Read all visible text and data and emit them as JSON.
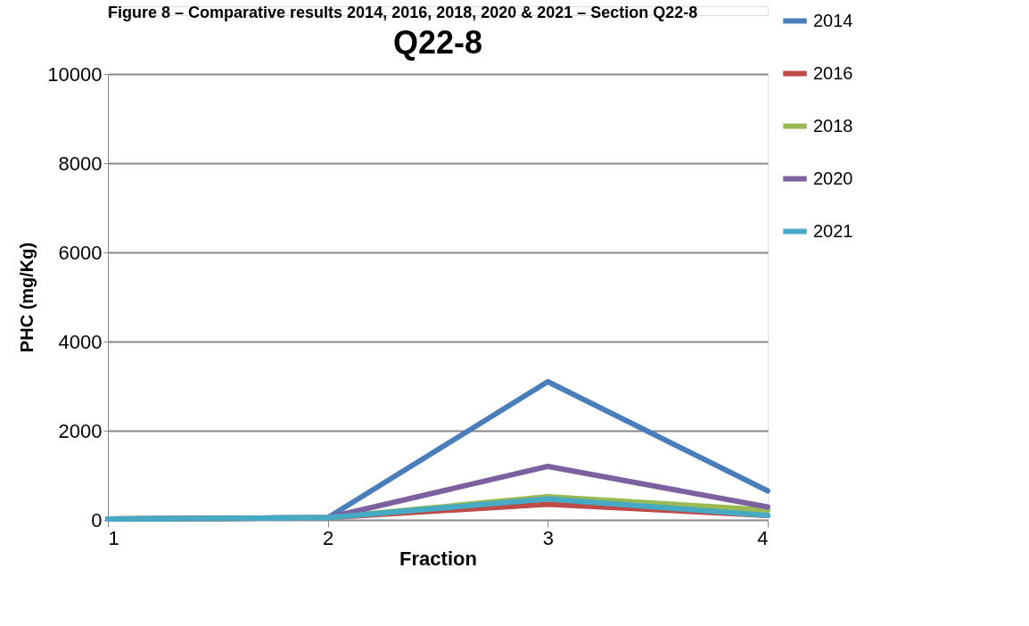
{
  "chart_data": {
    "type": "line",
    "title": "Q22-8",
    "xlabel": "Fraction",
    "ylabel": "PHC (mg/Kg)",
    "annotations": [
      "Figure 8 – Comparative results 2014, 2016, 2018, 2020 & 2021 – Section Q22-8"
    ],
    "x": [
      1,
      2,
      3,
      4
    ],
    "xlim": [
      1,
      4
    ],
    "xticks": [
      1,
      2,
      3,
      4
    ],
    "ylim": [
      0,
      10000
    ],
    "yticks": [
      0,
      2000,
      4000,
      6000,
      8000,
      10000
    ],
    "grid": "y",
    "legend": "right",
    "marker": "none",
    "line_style": "solid",
    "series": [
      {
        "name": "2014",
        "color": "#4a7ebb",
        "values": [
          20,
          50,
          3100,
          650
        ]
      },
      {
        "name": "2016",
        "color": "#be4b48",
        "values": [
          20,
          50,
          350,
          100
        ]
      },
      {
        "name": "2018",
        "color": "#98b954",
        "values": [
          20,
          50,
          520,
          220
        ]
      },
      {
        "name": "2020",
        "color": "#7d60a0",
        "values": [
          20,
          50,
          1200,
          290
        ]
      },
      {
        "name": "2021",
        "color": "#46aac5",
        "values": [
          20,
          50,
          470,
          100
        ]
      }
    ]
  }
}
